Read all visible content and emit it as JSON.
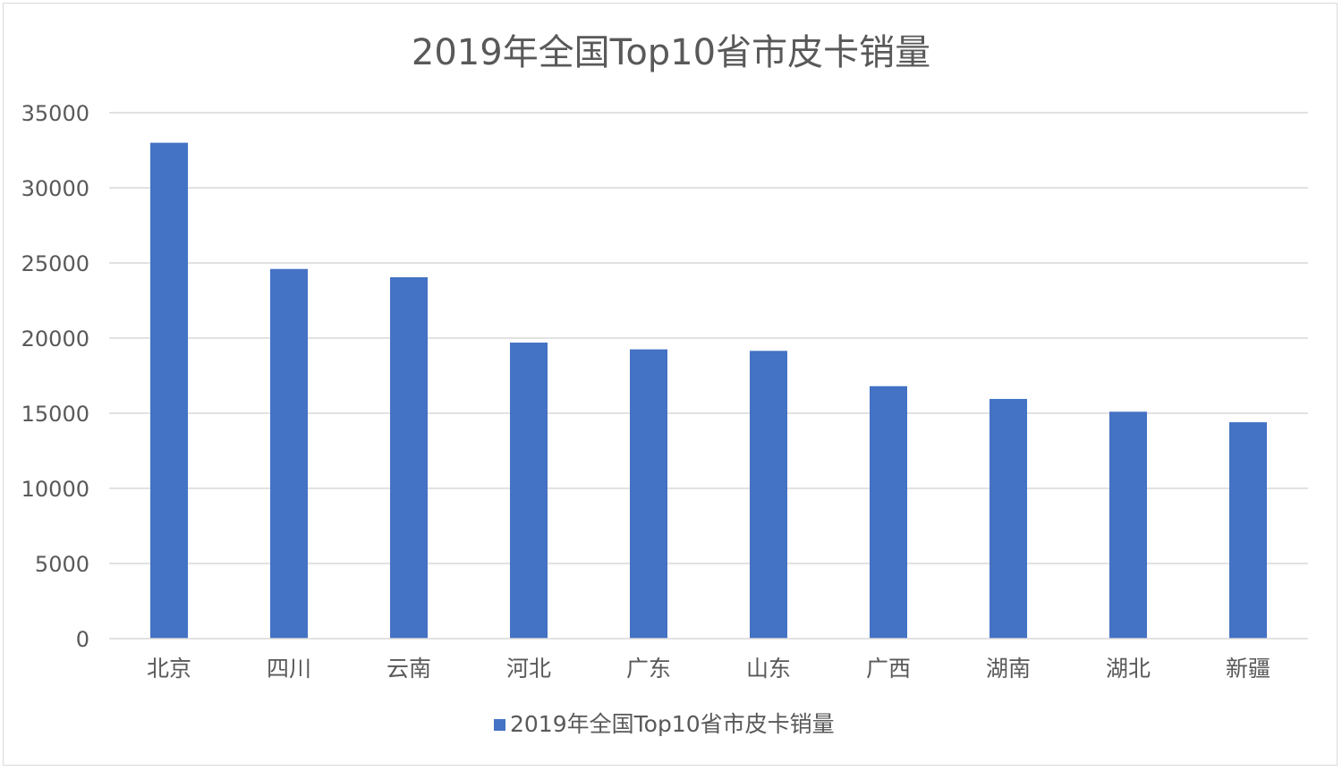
{
  "chart_data": {
    "type": "bar",
    "title": "2019年全国Top10省市皮卡销量",
    "categories": [
      "北京",
      "四川",
      "云南",
      "河北",
      "广东",
      "山东",
      "广西",
      "湖南",
      "湖北",
      "新疆"
    ],
    "series": [
      {
        "name": "2019年全国Top10省市皮卡销量",
        "values": [
          33000,
          24600,
          24050,
          19700,
          19250,
          19150,
          16800,
          15950,
          15100,
          14400
        ],
        "color": "#4472c4"
      }
    ],
    "ylim": [
      0,
      35000
    ],
    "yticks": [
      "0",
      "5000",
      "10000",
      "15000",
      "20000",
      "25000",
      "30000",
      "35000"
    ],
    "grid": true,
    "legend_position": "bottom"
  }
}
